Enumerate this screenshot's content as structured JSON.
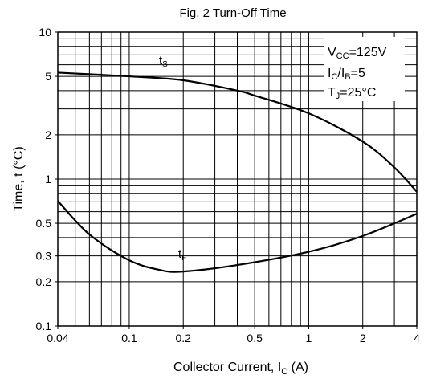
{
  "chart_data": {
    "type": "line",
    "title": "Fig. 2 Turn-Off Time",
    "xlabel": {
      "text": "Collector Current, I",
      "sub": "C",
      "tail": " (A)"
    },
    "ylabel": "Time, t (°C)",
    "xscale": "log",
    "yscale": "log",
    "xlim": [
      0.04,
      4
    ],
    "ylim": [
      0.1,
      10
    ],
    "xticks": [
      0.04,
      0.1,
      0.2,
      0.5,
      1,
      2,
      4
    ],
    "yticks": [
      0.1,
      0.2,
      0.3,
      0.5,
      1,
      2,
      5,
      10
    ],
    "xgrid": [
      0.05,
      0.06,
      0.07,
      0.08,
      0.09,
      0.1,
      0.2,
      0.3,
      0.4,
      0.5,
      0.6,
      0.7,
      0.8,
      0.9,
      1,
      2,
      3
    ],
    "ygrid": [
      0.2,
      0.3,
      0.4,
      0.5,
      0.6,
      0.7,
      0.8,
      0.9,
      1,
      2,
      3,
      4,
      5,
      6,
      7,
      8,
      9
    ],
    "color": "#000000",
    "series": [
      {
        "name": "t",
        "name_sub": "S",
        "x": [
          0.04,
          0.1,
          0.2,
          0.4,
          0.5,
          1,
          2,
          3,
          4
        ],
        "values": [
          5.3,
          5.0,
          4.7,
          4.0,
          3.7,
          2.8,
          1.8,
          1.2,
          0.82
        ]
      },
      {
        "name": "t",
        "name_sub": "F",
        "x": [
          0.04,
          0.06,
          0.1,
          0.15,
          0.2,
          0.4,
          1,
          2,
          4
        ],
        "values": [
          0.71,
          0.42,
          0.28,
          0.24,
          0.235,
          0.26,
          0.32,
          0.41,
          0.58
        ]
      }
    ],
    "annotations": [
      {
        "text": "V",
        "sub": "CC",
        "tail": "=125V"
      },
      {
        "text": "I",
        "sub": "C",
        "tail": "/I",
        "sub2": "B",
        "tail2": "=5"
      },
      {
        "text": "T",
        "sub": "J",
        "tail": "=25°C"
      }
    ]
  }
}
